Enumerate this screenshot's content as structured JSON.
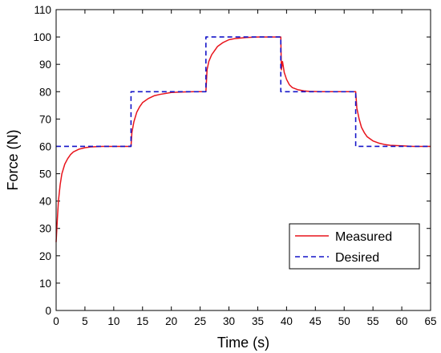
{
  "chart_data": {
    "type": "line",
    "xlabel": "Time (s)",
    "ylabel": "Force (N)",
    "xlim": [
      0,
      65
    ],
    "ylim": [
      0,
      110
    ],
    "xticks": [
      0,
      5,
      10,
      15,
      20,
      25,
      30,
      35,
      40,
      45,
      50,
      55,
      60,
      65
    ],
    "yticks": [
      0,
      10,
      20,
      30,
      40,
      50,
      60,
      70,
      80,
      90,
      100,
      110
    ],
    "grid": false,
    "legend_position": "bottom-right",
    "series": [
      {
        "name": "Measured",
        "color": "#e8141c",
        "style": "solid",
        "x": [
          0,
          0.2,
          0.4,
          0.7,
          1.0,
          1.5,
          2.0,
          2.5,
          3.0,
          4.0,
          5.0,
          6.0,
          8.0,
          10.0,
          13.0,
          13.15,
          13.5,
          14.0,
          14.5,
          15.0,
          16.0,
          17.0,
          18.0,
          20.0,
          22.0,
          24.0,
          26.0,
          26.2,
          26.5,
          27.0,
          27.5,
          28.0,
          29.0,
          30.0,
          31.0,
          33.0,
          35.0,
          37.0,
          39.0,
          39.1,
          39.3,
          39.6,
          40.0,
          40.5,
          41.0,
          42.0,
          43.0,
          44.0,
          46.0,
          48.0,
          50.0,
          52.0,
          52.2,
          52.6,
          53.0,
          53.5,
          54.0,
          55.0,
          56.0,
          57.0,
          58.0,
          60.0,
          62.0,
          65.0
        ],
        "y": [
          25,
          33,
          40,
          46,
          50,
          53.5,
          55.5,
          57,
          58,
          59,
          59.5,
          59.8,
          60,
          60,
          60,
          65,
          69,
          72.5,
          74.5,
          76,
          77.5,
          78.5,
          79,
          79.7,
          79.9,
          80,
          80,
          88,
          91,
          93.5,
          95,
          96.5,
          98,
          99,
          99.4,
          99.8,
          100,
          100,
          100,
          88,
          91,
          87,
          84.5,
          82.5,
          81.5,
          80.7,
          80.3,
          80.1,
          80,
          80,
          80,
          80,
          74,
          70,
          67,
          65,
          63.5,
          62,
          61.2,
          60.7,
          60.4,
          60.2,
          60,
          60
        ]
      },
      {
        "name": "Desired",
        "color": "#1414c8",
        "style": "dashed",
        "x": [
          0,
          13,
          13,
          26,
          26,
          39,
          39,
          52,
          52,
          65
        ],
        "y": [
          60,
          60,
          80,
          80,
          100,
          100,
          80,
          80,
          60,
          60
        ]
      }
    ]
  }
}
